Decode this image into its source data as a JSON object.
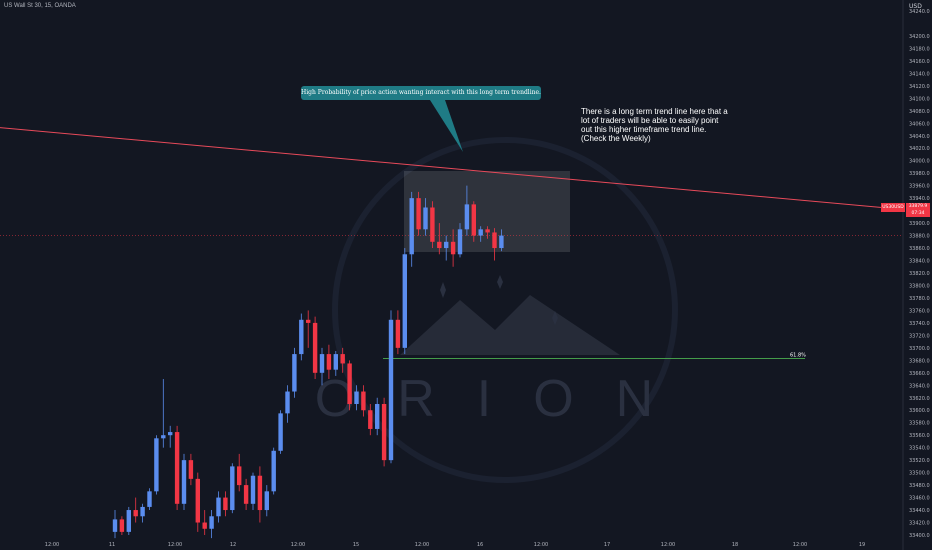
{
  "header": {
    "symbol_title": "US Wall St 30, 15, OANDA",
    "currency": "USD"
  },
  "annotations": {
    "callout_text": "High Probability of price action wanting interact with this long term trendline.",
    "note_text": "There is a long term trend line here that a lot of traders will be able to easily point out this higher timeframe trend line. (Check the Weekly)",
    "fib_label": "61.8%",
    "logo_text": "ORION"
  },
  "price_tags": {
    "symbol_tag": "US30USD",
    "price_tag_line1": "33879.9",
    "price_tag_line2": "07:34"
  },
  "colors": {
    "background": "#131722",
    "up": "#5b8def",
    "down": "#f23645",
    "trendline": "#e84a5a",
    "callout": "#1f7b85",
    "fib": "#4caf50"
  },
  "chart_data": {
    "type": "candlestick",
    "title": "US Wall St 30, 15, OANDA",
    "y_ticks": [
      "34240.0",
      "34200.0",
      "34180.0",
      "34160.0",
      "34140.0",
      "34120.0",
      "34100.0",
      "34080.0",
      "34060.0",
      "34040.0",
      "34020.0",
      "34000.0",
      "33980.0",
      "33960.0",
      "33940.0",
      "33920.0",
      "33900.0",
      "33880.0",
      "33860.0",
      "33840.0",
      "33820.0",
      "33800.0",
      "33780.0",
      "33760.0",
      "33740.0",
      "33720.0",
      "33700.0",
      "33680.0",
      "33660.0",
      "33640.0",
      "33620.0",
      "33600.0",
      "33580.0",
      "33560.0",
      "33540.0",
      "33520.0",
      "33500.0",
      "33480.0",
      "33460.0",
      "33440.0",
      "33420.0",
      "33400.0"
    ],
    "x_ticks": [
      "12:00",
      "11",
      "12:00",
      "12",
      "12:00",
      "15",
      "12:00",
      "16",
      "12:00",
      "17",
      "12:00",
      "18",
      "12:00",
      "19"
    ],
    "ylim": [
      33400,
      34240
    ],
    "trendline": {
      "x1_label": "left edge",
      "y_start": 34053,
      "y_end": 33922
    },
    "fib_level": {
      "label": "61.8%",
      "value": 33683
    },
    "last_price": 33879.9,
    "candles": [
      {
        "o": 33405,
        "h": 33440,
        "l": 33395,
        "c": 33425
      },
      {
        "o": 33425,
        "h": 33430,
        "l": 33400,
        "c": 33405
      },
      {
        "o": 33405,
        "h": 33445,
        "l": 33400,
        "c": 33440
      },
      {
        "o": 33440,
        "h": 33460,
        "l": 33420,
        "c": 33430
      },
      {
        "o": 33430,
        "h": 33450,
        "l": 33420,
        "c": 33445
      },
      {
        "o": 33445,
        "h": 33475,
        "l": 33440,
        "c": 33470
      },
      {
        "o": 33470,
        "h": 33560,
        "l": 33465,
        "c": 33555
      },
      {
        "o": 33555,
        "h": 33650,
        "l": 33540,
        "c": 33560
      },
      {
        "o": 33560,
        "h": 33575,
        "l": 33540,
        "c": 33565
      },
      {
        "o": 33565,
        "h": 33575,
        "l": 33440,
        "c": 33450
      },
      {
        "o": 33450,
        "h": 33530,
        "l": 33440,
        "c": 33520
      },
      {
        "o": 33520,
        "h": 33530,
        "l": 33480,
        "c": 33490
      },
      {
        "o": 33490,
        "h": 33500,
        "l": 33405,
        "c": 33420
      },
      {
        "o": 33420,
        "h": 33440,
        "l": 33400,
        "c": 33410
      },
      {
        "o": 33410,
        "h": 33440,
        "l": 33395,
        "c": 33430
      },
      {
        "o": 33430,
        "h": 33470,
        "l": 33420,
        "c": 33460
      },
      {
        "o": 33460,
        "h": 33470,
        "l": 33430,
        "c": 33440
      },
      {
        "o": 33440,
        "h": 33515,
        "l": 33435,
        "c": 33510
      },
      {
        "o": 33510,
        "h": 33530,
        "l": 33470,
        "c": 33480
      },
      {
        "o": 33480,
        "h": 33490,
        "l": 33440,
        "c": 33450
      },
      {
        "o": 33450,
        "h": 33500,
        "l": 33440,
        "c": 33495
      },
      {
        "o": 33495,
        "h": 33510,
        "l": 33420,
        "c": 33440
      },
      {
        "o": 33440,
        "h": 33480,
        "l": 33430,
        "c": 33470
      },
      {
        "o": 33470,
        "h": 33540,
        "l": 33465,
        "c": 33535
      },
      {
        "o": 33535,
        "h": 33600,
        "l": 33530,
        "c": 33595
      },
      {
        "o": 33595,
        "h": 33640,
        "l": 33580,
        "c": 33630
      },
      {
        "o": 33630,
        "h": 33700,
        "l": 33620,
        "c": 33690
      },
      {
        "o": 33690,
        "h": 33755,
        "l": 33680,
        "c": 33745
      },
      {
        "o": 33745,
        "h": 33760,
        "l": 33700,
        "c": 33740
      },
      {
        "o": 33740,
        "h": 33750,
        "l": 33650,
        "c": 33660
      },
      {
        "o": 33660,
        "h": 33700,
        "l": 33640,
        "c": 33690
      },
      {
        "o": 33690,
        "h": 33705,
        "l": 33650,
        "c": 33665
      },
      {
        "o": 33665,
        "h": 33695,
        "l": 33655,
        "c": 33690
      },
      {
        "o": 33690,
        "h": 33700,
        "l": 33660,
        "c": 33675
      },
      {
        "o": 33675,
        "h": 33680,
        "l": 33600,
        "c": 33610
      },
      {
        "o": 33610,
        "h": 33640,
        "l": 33600,
        "c": 33630
      },
      {
        "o": 33630,
        "h": 33640,
        "l": 33590,
        "c": 33600
      },
      {
        "o": 33600,
        "h": 33610,
        "l": 33560,
        "c": 33570
      },
      {
        "o": 33570,
        "h": 33620,
        "l": 33560,
        "c": 33610
      },
      {
        "o": 33610,
        "h": 33620,
        "l": 33510,
        "c": 33520
      },
      {
        "o": 33520,
        "h": 33760,
        "l": 33515,
        "c": 33745
      },
      {
        "o": 33745,
        "h": 33760,
        "l": 33690,
        "c": 33700
      },
      {
        "o": 33700,
        "h": 33860,
        "l": 33690,
        "c": 33850
      },
      {
        "o": 33850,
        "h": 33950,
        "l": 33830,
        "c": 33940
      },
      {
        "o": 33940,
        "h": 33950,
        "l": 33880,
        "c": 33890
      },
      {
        "o": 33890,
        "h": 33940,
        "l": 33880,
        "c": 33925
      },
      {
        "o": 33925,
        "h": 33935,
        "l": 33860,
        "c": 33870
      },
      {
        "o": 33870,
        "h": 33900,
        "l": 33850,
        "c": 33860
      },
      {
        "o": 33860,
        "h": 33880,
        "l": 33840,
        "c": 33870
      },
      {
        "o": 33870,
        "h": 33890,
        "l": 33830,
        "c": 33850
      },
      {
        "o": 33850,
        "h": 33900,
        "l": 33845,
        "c": 33890
      },
      {
        "o": 33890,
        "h": 33960,
        "l": 33880,
        "c": 33930
      },
      {
        "o": 33930,
        "h": 33935,
        "l": 33870,
        "c": 33880
      },
      {
        "o": 33880,
        "h": 33895,
        "l": 33870,
        "c": 33890
      },
      {
        "o": 33890,
        "h": 33895,
        "l": 33875,
        "c": 33885
      },
      {
        "o": 33885,
        "h": 33892,
        "l": 33840,
        "c": 33860
      },
      {
        "o": 33860,
        "h": 33890,
        "l": 33855,
        "c": 33880
      }
    ]
  }
}
